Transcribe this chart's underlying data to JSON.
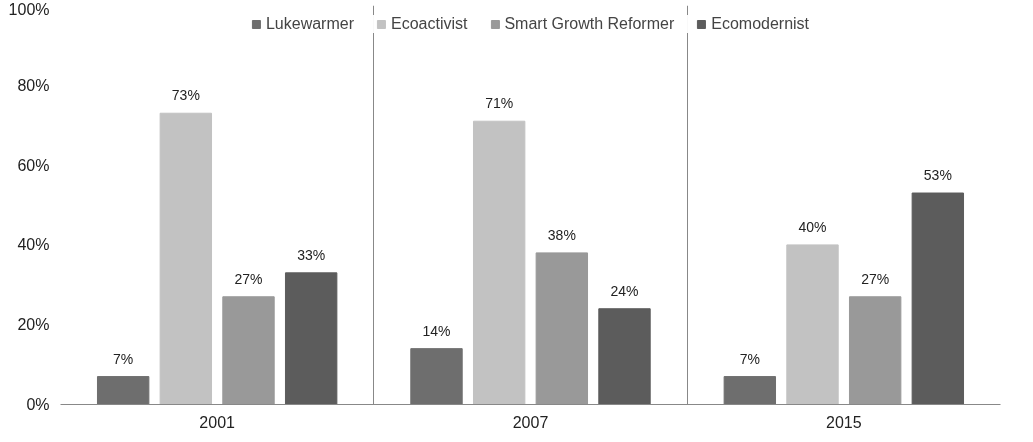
{
  "chart_data": {
    "type": "bar",
    "categories": [
      "2001",
      "2007",
      "2015"
    ],
    "series": [
      {
        "name": "Lukewarmer",
        "color": "#6e6e6e",
        "values": [
          7,
          14,
          7
        ],
        "value_labels": [
          "7%",
          "14%",
          "7%"
        ]
      },
      {
        "name": "Ecoactivist",
        "color": "#c2c2c2",
        "values": [
          73,
          71,
          40
        ],
        "value_labels": [
          "73%",
          "71%",
          "40%"
        ]
      },
      {
        "name": "Smart Growth Reformer",
        "color": "#999999",
        "values": [
          27,
          38,
          27
        ],
        "value_labels": [
          "27%",
          "38%",
          "27%"
        ]
      },
      {
        "name": "Ecomodernist",
        "color": "#5c5c5c",
        "values": [
          33,
          24,
          53
        ],
        "value_labels": [
          "33%",
          "24%",
          "53%"
        ]
      }
    ],
    "ylim": [
      0,
      100
    ],
    "yticks": [
      {
        "value": 0,
        "label": "0%"
      },
      {
        "value": 20,
        "label": "20%"
      },
      {
        "value": 40,
        "label": "40%"
      },
      {
        "value": 60,
        "label": "60%"
      },
      {
        "value": 80,
        "label": "80%"
      },
      {
        "value": 100,
        "label": "100%"
      }
    ],
    "grid": "x",
    "legend": "top"
  }
}
